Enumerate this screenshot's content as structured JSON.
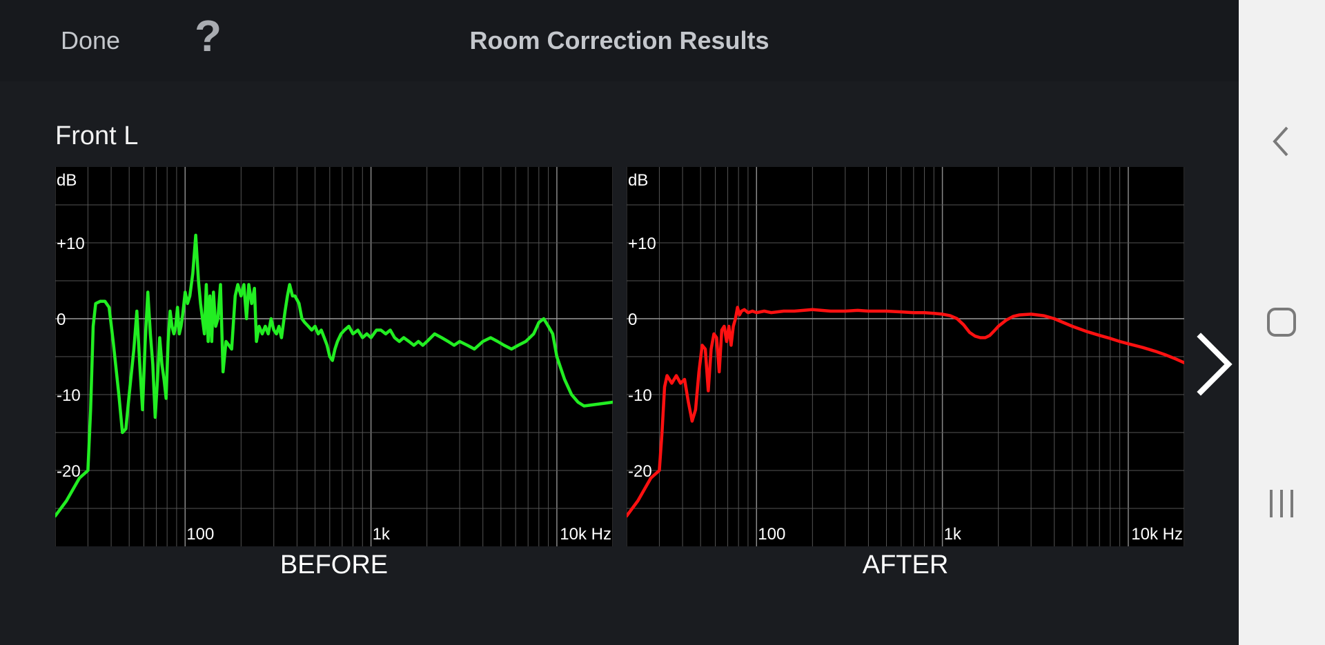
{
  "header": {
    "done_label": "Done",
    "help_label": "?",
    "title": "Room Correction Results"
  },
  "channel_label": "Front L",
  "colors": {
    "before": "#22ee22",
    "after": "#ff1111",
    "background": "#1a1c20",
    "plot_background": "#000000",
    "grid": "#555555",
    "zero_line": "#9a9a9a"
  },
  "icons": {
    "help": "question-mark-icon",
    "next": "chevron-right-icon",
    "nav_back": "nav-back-icon",
    "nav_home": "nav-home-icon",
    "nav_recents": "nav-recents-icon"
  },
  "chart_data": [
    {
      "type": "line",
      "caption": "BEFORE",
      "ylabel": "dB",
      "x_scale": "log",
      "xlim": [
        20,
        20000
      ],
      "ylim": [
        -30,
        20
      ],
      "x_ticks": [
        {
          "value": 100,
          "label": "100"
        },
        {
          "value": 1000,
          "label": "1k"
        },
        {
          "value": 10000,
          "label": "10k Hz"
        }
      ],
      "y_ticks": [
        {
          "value": 10,
          "label": "+10"
        },
        {
          "value": 0,
          "label": "0"
        },
        {
          "value": -10,
          "label": "-10"
        },
        {
          "value": -20,
          "label": "-20"
        }
      ],
      "grid": true,
      "series": [
        {
          "color": "#22ee22",
          "points": [
            [
              20,
              -26
            ],
            [
              23,
              -24
            ],
            [
              27,
              -21
            ],
            [
              30,
              -20
            ],
            [
              31,
              -12
            ],
            [
              32,
              -1
            ],
            [
              33,
              2
            ],
            [
              35,
              2.3
            ],
            [
              37,
              2.3
            ],
            [
              39,
              1.5
            ],
            [
              41,
              -3
            ],
            [
              44,
              -10
            ],
            [
              46,
              -15
            ],
            [
              48,
              -14.5
            ],
            [
              50,
              -10
            ],
            [
              53,
              -4
            ],
            [
              55,
              1
            ],
            [
              57,
              -6
            ],
            [
              59,
              -12
            ],
            [
              61,
              -3
            ],
            [
              63,
              3.5
            ],
            [
              65,
              -2
            ],
            [
              67,
              -6
            ],
            [
              69,
              -13
            ],
            [
              71,
              -8
            ],
            [
              73,
              -2.5
            ],
            [
              75,
              -6
            ],
            [
              77,
              -8
            ],
            [
              79,
              -10.5
            ],
            [
              81,
              -3
            ],
            [
              83,
              1
            ],
            [
              85,
              -1
            ],
            [
              87,
              -2
            ],
            [
              89,
              -1
            ],
            [
              91,
              1.5
            ],
            [
              93,
              -2
            ],
            [
              95,
              -1
            ],
            [
              97,
              0.5
            ],
            [
              100,
              3.5
            ],
            [
              103,
              2
            ],
            [
              106,
              3
            ],
            [
              110,
              6
            ],
            [
              114,
              11
            ],
            [
              118,
              5
            ],
            [
              121,
              2
            ],
            [
              124,
              0
            ],
            [
              127,
              -2
            ],
            [
              130,
              4.5
            ],
            [
              133,
              -3
            ],
            [
              136,
              3
            ],
            [
              139,
              -3
            ],
            [
              142,
              3.5
            ],
            [
              146,
              -1
            ],
            [
              150,
              0
            ],
            [
              155,
              4.5
            ],
            [
              160,
              -7
            ],
            [
              166,
              -3
            ],
            [
              172,
              -3.5
            ],
            [
              178,
              -4
            ],
            [
              186,
              3
            ],
            [
              192,
              4.5
            ],
            [
              200,
              3
            ],
            [
              207,
              4.5
            ],
            [
              214,
              0
            ],
            [
              220,
              4.5
            ],
            [
              228,
              2
            ],
            [
              236,
              4
            ],
            [
              242,
              -3
            ],
            [
              250,
              -1
            ],
            [
              260,
              -2
            ],
            [
              270,
              -1
            ],
            [
              280,
              -2
            ],
            [
              290,
              0
            ],
            [
              300,
              -1.5
            ],
            [
              310,
              -2
            ],
            [
              320,
              -1
            ],
            [
              330,
              -2.5
            ],
            [
              345,
              1
            ],
            [
              355,
              3
            ],
            [
              365,
              4.5
            ],
            [
              378,
              3
            ],
            [
              390,
              3
            ],
            [
              410,
              2
            ],
            [
              425,
              0
            ],
            [
              440,
              -0.5
            ],
            [
              460,
              -1
            ],
            [
              480,
              -1.5
            ],
            [
              500,
              -1
            ],
            [
              520,
              -2
            ],
            [
              540,
              -1.5
            ],
            [
              560,
              -2.5
            ],
            [
              580,
              -3.5
            ],
            [
              600,
              -5
            ],
            [
              620,
              -5.5
            ],
            [
              640,
              -4
            ],
            [
              660,
              -3
            ],
            [
              690,
              -2
            ],
            [
              720,
              -1.5
            ],
            [
              760,
              -1
            ],
            [
              800,
              -2
            ],
            [
              850,
              -1.5
            ],
            [
              900,
              -2.5
            ],
            [
              950,
              -2
            ],
            [
              1000,
              -2.5
            ],
            [
              1070,
              -1.5
            ],
            [
              1130,
              -1.5
            ],
            [
              1200,
              -2
            ],
            [
              1270,
              -1.5
            ],
            [
              1340,
              -2.5
            ],
            [
              1420,
              -3
            ],
            [
              1500,
              -2.5
            ],
            [
              1600,
              -3
            ],
            [
              1700,
              -3.5
            ],
            [
              1800,
              -3
            ],
            [
              1900,
              -3.5
            ],
            [
              2000,
              -3
            ],
            [
              2200,
              -2
            ],
            [
              2400,
              -2.5
            ],
            [
              2600,
              -3
            ],
            [
              2800,
              -3.5
            ],
            [
              3000,
              -3
            ],
            [
              3300,
              -3.5
            ],
            [
              3600,
              -4
            ],
            [
              4000,
              -3
            ],
            [
              4400,
              -2.5
            ],
            [
              4800,
              -3
            ],
            [
              5200,
              -3.5
            ],
            [
              5700,
              -4
            ],
            [
              6200,
              -3.5
            ],
            [
              6800,
              -3
            ],
            [
              7500,
              -2
            ],
            [
              8000,
              -0.5
            ],
            [
              8500,
              0
            ],
            [
              9000,
              -1
            ],
            [
              9500,
              -2
            ],
            [
              10000,
              -5
            ],
            [
              11000,
              -8
            ],
            [
              12000,
              -10
            ],
            [
              13000,
              -11
            ],
            [
              14000,
              -11.5
            ],
            [
              20000,
              -11
            ]
          ]
        }
      ]
    },
    {
      "type": "line",
      "caption": "AFTER",
      "ylabel": "dB",
      "x_scale": "log",
      "xlim": [
        20,
        20000
      ],
      "ylim": [
        -30,
        20
      ],
      "x_ticks": [
        {
          "value": 100,
          "label": "100"
        },
        {
          "value": 1000,
          "label": "1k"
        },
        {
          "value": 10000,
          "label": "10k Hz"
        }
      ],
      "y_ticks": [
        {
          "value": 10,
          "label": "+10"
        },
        {
          "value": 0,
          "label": "0"
        },
        {
          "value": -10,
          "label": "-10"
        },
        {
          "value": -20,
          "label": "-20"
        }
      ],
      "grid": true,
      "series": [
        {
          "color": "#ff1111",
          "points": [
            [
              20,
              -26
            ],
            [
              23,
              -24
            ],
            [
              27,
              -21
            ],
            [
              30,
              -20
            ],
            [
              31,
              -15
            ],
            [
              32,
              -9
            ],
            [
              33,
              -7.5
            ],
            [
              35,
              -8.5
            ],
            [
              37,
              -7.5
            ],
            [
              39,
              -8.5
            ],
            [
              41,
              -8
            ],
            [
              43,
              -11
            ],
            [
              45,
              -13.5
            ],
            [
              47,
              -12
            ],
            [
              49,
              -7
            ],
            [
              51,
              -3.5
            ],
            [
              53,
              -4
            ],
            [
              55,
              -9.5
            ],
            [
              57,
              -4
            ],
            [
              59,
              -2
            ],
            [
              61,
              -2.5
            ],
            [
              63,
              -7
            ],
            [
              65,
              -1.5
            ],
            [
              67,
              -1
            ],
            [
              69,
              -3
            ],
            [
              71,
              -1
            ],
            [
              73,
              -3.5
            ],
            [
              75,
              -1
            ],
            [
              77,
              0
            ],
            [
              79,
              1.5
            ],
            [
              81,
              0.5
            ],
            [
              83,
              1
            ],
            [
              86,
              1.2
            ],
            [
              90,
              0.8
            ],
            [
              95,
              1
            ],
            [
              100,
              0.8
            ],
            [
              110,
              1
            ],
            [
              120,
              0.8
            ],
            [
              140,
              1
            ],
            [
              160,
              1
            ],
            [
              200,
              1.2
            ],
            [
              250,
              1
            ],
            [
              300,
              1
            ],
            [
              350,
              1.1
            ],
            [
              400,
              1
            ],
            [
              500,
              1
            ],
            [
              600,
              0.9
            ],
            [
              700,
              0.8
            ],
            [
              800,
              0.8
            ],
            [
              900,
              0.7
            ],
            [
              1000,
              0.6
            ],
            [
              1100,
              0.4
            ],
            [
              1200,
              0
            ],
            [
              1300,
              -0.8
            ],
            [
              1400,
              -1.8
            ],
            [
              1500,
              -2.3
            ],
            [
              1600,
              -2.5
            ],
            [
              1700,
              -2.5
            ],
            [
              1800,
              -2.2
            ],
            [
              1900,
              -1.6
            ],
            [
              2000,
              -1
            ],
            [
              2200,
              -0.2
            ],
            [
              2400,
              0.3
            ],
            [
              2600,
              0.5
            ],
            [
              3000,
              0.6
            ],
            [
              3500,
              0.4
            ],
            [
              4000,
              0
            ],
            [
              5000,
              -1
            ],
            [
              6000,
              -1.7
            ],
            [
              7000,
              -2.2
            ],
            [
              8000,
              -2.6
            ],
            [
              9000,
              -3
            ],
            [
              10000,
              -3.3
            ],
            [
              12000,
              -3.8
            ],
            [
              14000,
              -4.3
            ],
            [
              16000,
              -4.8
            ],
            [
              18000,
              -5.3
            ],
            [
              20000,
              -5.8
            ]
          ]
        }
      ]
    }
  ]
}
